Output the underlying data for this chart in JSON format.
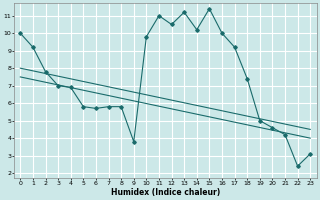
{
  "xlabel": "Humidex (Indice chaleur)",
  "bg_color": "#cce8e8",
  "grid_color": "#ffffff",
  "line_color": "#1a6b6b",
  "x_ticks": [
    0,
    1,
    2,
    3,
    4,
    5,
    6,
    7,
    8,
    9,
    10,
    11,
    12,
    13,
    14,
    15,
    16,
    17,
    18,
    19,
    20,
    21,
    22,
    23
  ],
  "y_ticks": [
    2,
    3,
    4,
    5,
    6,
    7,
    8,
    9,
    10,
    11
  ],
  "ylim": [
    1.7,
    11.7
  ],
  "xlim": [
    -0.5,
    23.5
  ],
  "line1_x": [
    0,
    1,
    2,
    3,
    4,
    5,
    6,
    7,
    8,
    9,
    10,
    11,
    12,
    13,
    14,
    15,
    16,
    17,
    18,
    19,
    20,
    21,
    22,
    23
  ],
  "line1_y": [
    10.0,
    9.2,
    7.8,
    7.0,
    6.9,
    5.8,
    5.7,
    5.8,
    5.8,
    3.8,
    9.8,
    11.0,
    10.5,
    11.2,
    10.2,
    11.4,
    10.0,
    9.2,
    7.4,
    5.0,
    4.6,
    4.2,
    2.4,
    3.1
  ],
  "line2_x": [
    0,
    23
  ],
  "line2_y": [
    8.0,
    4.5
  ],
  "line3_x": [
    0,
    23
  ],
  "line3_y": [
    7.5,
    4.0
  ]
}
